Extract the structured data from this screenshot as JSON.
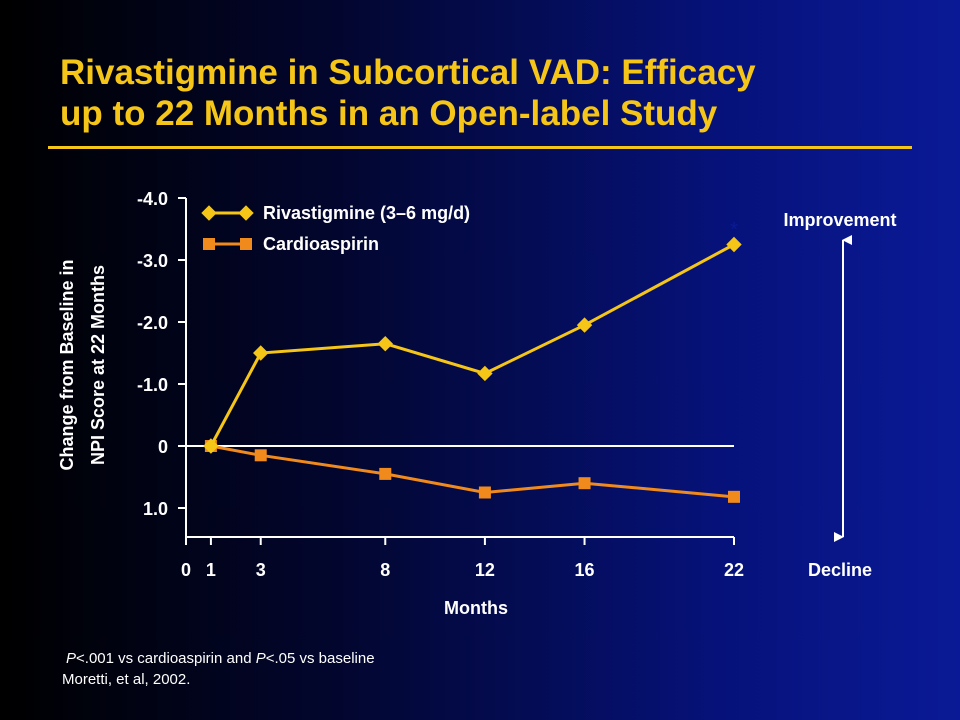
{
  "slide": {
    "title_line1": "Rivastigmine in Subcortical VAD: Efficacy",
    "title_line2": "up to 22 Months in an Open-label Study",
    "footnote_p1": "P",
    "footnote_t1": "<.001 vs cardioaspirin and ",
    "footnote_p2": "P",
    "footnote_t2": "<.05 vs baseline",
    "citation": "Moretti, et al, 2002."
  },
  "colors": {
    "title": "#f5c518",
    "rivastigmine": "#f5c518",
    "cardioaspirin": "#f08a1c",
    "axis": "#ffffff"
  },
  "chart_data": {
    "type": "line",
    "ylabel_line1": "Change from Baseline in",
    "ylabel_line2": "NPI Score at 22 Months",
    "xlabel": "Months",
    "x_ticks": [
      0,
      1,
      3,
      8,
      12,
      16,
      22
    ],
    "x_range": [
      0,
      22
    ],
    "y_ticks": [
      {
        "value": -4,
        "label": "-4.0"
      },
      {
        "value": -3,
        "label": "-3.0"
      },
      {
        "value": -2,
        "label": "-2.0"
      },
      {
        "value": -1,
        "label": "-1.0"
      },
      {
        "value": 0,
        "label": "0"
      },
      {
        "value": 1,
        "label": "1.0"
      }
    ],
    "y_range": [
      1.5,
      -4
    ],
    "y_inverted": true,
    "grid": false,
    "legend_position": "top-left",
    "series": [
      {
        "name": "Rivastigmine (3–6 mg/d)",
        "marker": "diamond",
        "color": "#f5c518",
        "x": [
          1,
          3,
          8,
          12,
          16,
          22
        ],
        "y": [
          0,
          -1.5,
          -1.65,
          -1.17,
          -1.95,
          -3.25
        ]
      },
      {
        "name": "Cardioaspirin",
        "marker": "square",
        "color": "#f08a1c",
        "x": [
          1,
          3,
          8,
          12,
          16,
          22
        ],
        "y": [
          0,
          0.15,
          0.45,
          0.75,
          0.6,
          0.82
        ]
      }
    ],
    "annotations": {
      "significance": "*",
      "improvement": "Improvement",
      "decline": "Decline"
    }
  }
}
